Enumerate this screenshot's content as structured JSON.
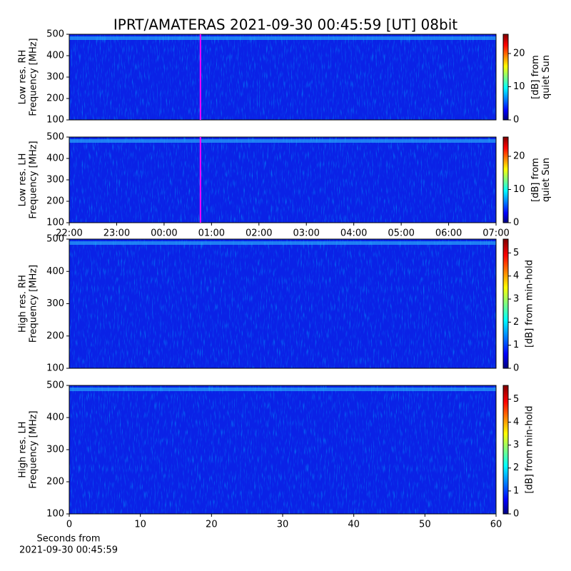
{
  "figure": {
    "title": "IPRT/AMATERAS 2021-09-30 00:45:59 [UT]   08bit"
  },
  "chart_data": [
    {
      "type": "heatmap",
      "ylabel": [
        "Low res. RH",
        "Frequency [MHz]"
      ],
      "ylim": [
        100,
        500
      ],
      "yticks": [
        100,
        200,
        300,
        400,
        500
      ],
      "xlim": [
        "22:00",
        "07:00"
      ],
      "colormap": "jet",
      "clim": [
        0,
        25.8
      ],
      "cticks": [
        0,
        10,
        20
      ],
      "clabel": [
        "[dB] from",
        "quiet Sun"
      ],
      "marker": {
        "x": "00:45:59",
        "color": "#ff00ff"
      }
    },
    {
      "type": "heatmap",
      "ylabel": [
        "Low res. LH",
        "Frequency [MHz]"
      ],
      "ylim": [
        100,
        500
      ],
      "yticks": [
        100,
        200,
        300,
        400,
        500
      ],
      "xlim": [
        "22:00",
        "07:00"
      ],
      "xticks": [
        "22:00",
        "23:00",
        "00:00",
        "01:00",
        "02:00",
        "03:00",
        "04:00",
        "05:00",
        "06:00",
        "07:00"
      ],
      "colormap": "jet",
      "clim": [
        0,
        25.8
      ],
      "cticks": [
        0,
        10,
        20
      ],
      "clabel": [
        "[dB] from",
        "quiet Sun"
      ],
      "marker": {
        "x": "00:45:59",
        "color": "#ff00ff"
      }
    },
    {
      "type": "heatmap",
      "ylabel": [
        "High res. RH",
        "Frequency [MHz]"
      ],
      "ylim": [
        100,
        500
      ],
      "yticks": [
        100,
        200,
        300,
        400,
        500
      ],
      "xlim": [
        0,
        60
      ],
      "colormap": "jet",
      "clim": [
        0,
        5.6
      ],
      "cticks": [
        0,
        1,
        2,
        3,
        4,
        5
      ],
      "clabel": [
        "[dB] from min-hold"
      ]
    },
    {
      "type": "heatmap",
      "ylabel": [
        "High res. LH",
        "Frequency [MHz]"
      ],
      "ylim": [
        100,
        500
      ],
      "yticks": [
        100,
        200,
        300,
        400,
        500
      ],
      "xlim": [
        0,
        60
      ],
      "xticks": [
        0,
        10,
        20,
        30,
        40,
        50,
        60
      ],
      "xlabel": [
        "Seconds from",
        "2021-09-30 00:45:59"
      ],
      "colormap": "jet",
      "clim": [
        0,
        5.6
      ],
      "cticks": [
        0,
        1,
        2,
        3,
        4,
        5
      ],
      "clabel": [
        "[dB] from min-hold"
      ]
    }
  ]
}
